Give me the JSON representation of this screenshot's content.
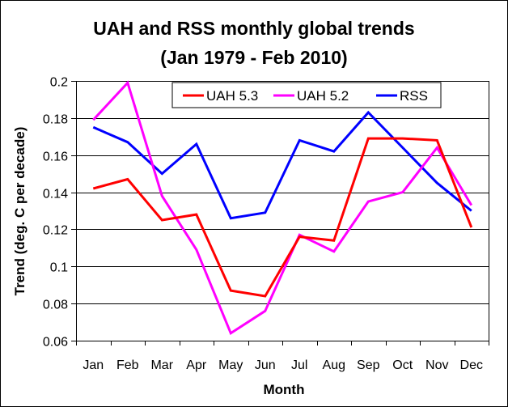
{
  "chart_data": {
    "type": "line",
    "title": "UAH and RSS monthly global trends",
    "subtitle": "(Jan 1979 - Feb 2010)",
    "xlabel": "Month",
    "ylabel": "Trend (deg. C per decade)",
    "categories": [
      "Jan",
      "Feb",
      "Mar",
      "Apr",
      "May",
      "Jun",
      "Jul",
      "Aug",
      "Sep",
      "Oct",
      "Nov",
      "Dec"
    ],
    "ylim": [
      0.06,
      0.2
    ],
    "yticks": [
      "0.06",
      "0.08",
      "0.1",
      "0.12",
      "0.14",
      "0.16",
      "0.18",
      "0.2"
    ],
    "ytick_values": [
      0.06,
      0.08,
      0.1,
      0.12,
      0.14,
      0.16,
      0.18,
      0.2
    ],
    "grid": true,
    "legend_position": "top-center",
    "series": [
      {
        "name": "UAH 5.3",
        "color": "#ff0000",
        "values": [
          0.142,
          0.147,
          0.125,
          0.128,
          0.087,
          0.084,
          0.116,
          0.114,
          0.169,
          0.169,
          0.168,
          0.121
        ]
      },
      {
        "name": "UAH 5.2",
        "color": "#ff00ff",
        "values": [
          0.179,
          0.199,
          0.138,
          0.109,
          0.064,
          0.076,
          0.117,
          0.108,
          0.135,
          0.14,
          0.164,
          0.133
        ]
      },
      {
        "name": "RSS",
        "color": "#0000ff",
        "values": [
          0.175,
          0.167,
          0.15,
          0.166,
          0.126,
          0.129,
          0.168,
          0.162,
          0.183,
          0.164,
          0.145,
          0.13
        ]
      }
    ]
  }
}
